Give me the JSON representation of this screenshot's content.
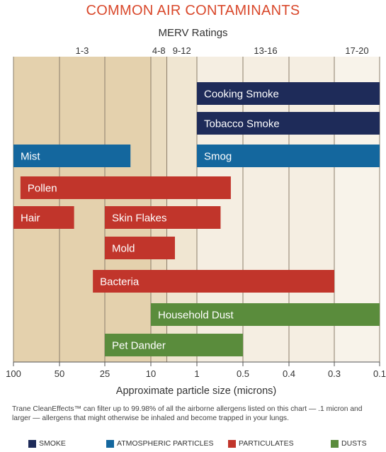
{
  "chart_data": {
    "type": "bar",
    "title": "COMMON AIR CONTAMINANTS",
    "top_axis_title": "MERV Ratings",
    "xlabel": "Approximate particle size (microns)",
    "x_scale": "log (reversed)",
    "x_ticks": [
      {
        "value": 100,
        "label": "100"
      },
      {
        "value": 50,
        "label": "50"
      },
      {
        "value": 25,
        "label": "25"
      },
      {
        "value": 10,
        "label": "10"
      },
      {
        "value": 1,
        "label": "1"
      },
      {
        "value": 0.5,
        "label": "0.5"
      },
      {
        "value": 0.4,
        "label": "0.4"
      },
      {
        "value": 0.3,
        "label": "0.3"
      },
      {
        "value": 0.1,
        "label": "0.1"
      }
    ],
    "merv_bands": [
      {
        "label": "1-3",
        "from": 100,
        "to": 10,
        "color": "#e4d1ad"
      },
      {
        "label": "4-8",
        "from": 10,
        "to": 4.5,
        "color": "#eadcc0"
      },
      {
        "label": "9-12",
        "from": 4.5,
        "to": 1,
        "color": "#f0e6d2"
      },
      {
        "label": "13-16",
        "from": 1,
        "to": 0.3,
        "color": "#f5eee2"
      },
      {
        "label": "17-20",
        "from": 0.3,
        "to": 0.1,
        "color": "#f8f3ea"
      }
    ],
    "categories_legend": [
      {
        "name": "SMOKE",
        "color": "#1e2b59"
      },
      {
        "name": "ATMOSPHERIC PARTICLES",
        "color": "#14679e"
      },
      {
        "name": "PARTICULATES",
        "color": "#c1352b"
      },
      {
        "name": "DUSTS",
        "color": "#5a8c3c"
      }
    ],
    "bars": [
      {
        "label": "Cooking Smoke",
        "category": "SMOKE",
        "max_size": 1,
        "min_size": 0.1
      },
      {
        "label": "Tobacco Smoke",
        "category": "SMOKE",
        "max_size": 1,
        "min_size": 0.1
      },
      {
        "label": "Mist",
        "category": "ATMOSPHERIC PARTICLES",
        "max_size": 100,
        "min_size": 15
      },
      {
        "label": "Smog",
        "category": "ATMOSPHERIC PARTICLES",
        "max_size": 1,
        "min_size": 0.1
      },
      {
        "label": "Pollen",
        "category": "PARTICULATES",
        "max_size": 90,
        "min_size": 0.6
      },
      {
        "label": "Hair",
        "category": "PARTICULATES",
        "max_size": 100,
        "min_size": 40
      },
      {
        "label": "Skin Flakes",
        "category": "PARTICULATES",
        "max_size": 25,
        "min_size": 0.7
      },
      {
        "label": "Mold",
        "category": "PARTICULATES",
        "max_size": 25,
        "min_size": 3
      },
      {
        "label": "Bacteria",
        "category": "PARTICULATES",
        "max_size": 30,
        "min_size": 0.3
      },
      {
        "label": "Household Dust",
        "category": "DUSTS",
        "max_size": 10,
        "min_size": 0.1
      },
      {
        "label": "Pet Dander",
        "category": "DUSTS",
        "max_size": 25,
        "min_size": 0.5
      }
    ]
  },
  "footnote": "Trane CleanEffects™ can filter up to 99.98% of all the airborne allergens listed on this chart — .1 micron and larger — allergens that might otherwise be inhaled and become trapped in your lungs."
}
